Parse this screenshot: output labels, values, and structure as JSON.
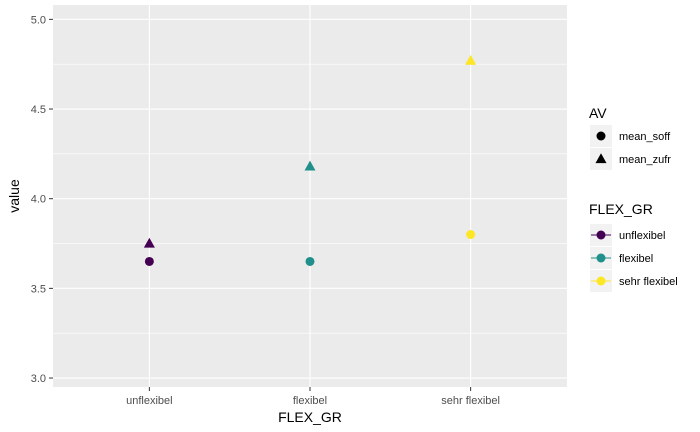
{
  "chart_data": {
    "type": "scatter",
    "xlabel": "FLEX_GR",
    "ylabel": "value",
    "categories": [
      "unflexibel",
      "flexibel",
      "sehr flexibel"
    ],
    "ylim": [
      2.95,
      5.08
    ],
    "yticks": [
      "3.0",
      "3.5",
      "4.0",
      "4.5",
      "5.0"
    ],
    "grid": true,
    "legend_position": "right",
    "series": [
      {
        "name": "mean_soff",
        "shape": "circle",
        "values": [
          3.65,
          3.65,
          3.8
        ]
      },
      {
        "name": "mean_zufr",
        "shape": "triangle",
        "values": [
          3.75,
          4.18,
          4.77
        ]
      }
    ],
    "colors": [
      "#440154",
      "#21908C",
      "#FDE725"
    ],
    "panel_color": "#EBEBEB",
    "legends": {
      "shape": {
        "title": "AV",
        "items": [
          "mean_soff",
          "mean_zufr"
        ]
      },
      "color": {
        "title": "FLEX_GR",
        "items": [
          "unflexibel",
          "flexibel",
          "sehr flexibel"
        ]
      }
    }
  }
}
